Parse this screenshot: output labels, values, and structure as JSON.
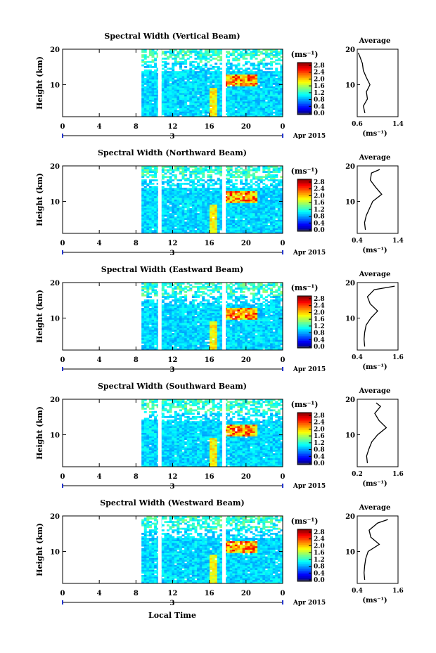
{
  "figure": {
    "bottom_xlabel": "Local Time",
    "colorbar_unit": "(ms⁻¹)",
    "avg_title": "Average",
    "avg_xunit": "(ms⁻¹)",
    "date_day": "3",
    "date_label": "Apr 2015",
    "ylabel": "Height (km)",
    "colorbar_ticks": [
      "2.8",
      "2.4",
      "2.0",
      "1.6",
      "1.2",
      "0.8",
      "0.4",
      "0.0"
    ],
    "time_ticks": [
      "0",
      "4",
      "8",
      "12",
      "16",
      "20",
      "0"
    ],
    "height_ticks": [
      "20",
      "10"
    ]
  },
  "chart_data": [
    {
      "type": "heatmap",
      "title": "Spectral Width (Vertical Beam)",
      "xlabel": "Local Time",
      "ylabel": "Height (km)",
      "xlim": [
        0,
        24
      ],
      "ylim": [
        1,
        20
      ],
      "data_start_hour": 8.6,
      "gaps_hours": [
        10.6,
        17.6
      ],
      "clim": [
        0.0,
        3.0
      ],
      "colorbar_unit": "(ms⁻¹)",
      "average_profile": {
        "title": "Average",
        "xlim": [
          0.6,
          1.4
        ],
        "xticks": [
          "0.6",
          "1.4"
        ],
        "heights": [
          2,
          4,
          6,
          8,
          10,
          12,
          14,
          16,
          18,
          19
        ],
        "values": [
          0.75,
          0.72,
          0.8,
          0.78,
          0.85,
          0.78,
          0.72,
          0.7,
          0.65,
          0.62
        ]
      }
    },
    {
      "type": "heatmap",
      "title": "Spectral Width (Northward Beam)",
      "xlabel": "Local Time",
      "ylabel": "Height (km)",
      "xlim": [
        0,
        24
      ],
      "ylim": [
        1,
        20
      ],
      "data_start_hour": 8.6,
      "gaps_hours": [
        10.6,
        17.6
      ],
      "clim": [
        0.0,
        3.0
      ],
      "colorbar_unit": "(ms⁻¹)",
      "average_profile": {
        "title": "Average",
        "xlim": [
          0.4,
          1.4
        ],
        "xticks": [
          "0.4",
          "1.4"
        ],
        "heights": [
          2,
          4,
          6,
          8,
          10,
          12,
          14,
          16,
          18,
          19
        ],
        "values": [
          0.6,
          0.58,
          0.62,
          0.7,
          0.78,
          1.0,
          0.85,
          0.72,
          0.75,
          0.95
        ]
      }
    },
    {
      "type": "heatmap",
      "title": "Spectral Width (Eastward Beam)",
      "xlabel": "Local Time",
      "ylabel": "Height (km)",
      "xlim": [
        0,
        24
      ],
      "ylim": [
        1,
        20
      ],
      "data_start_hour": 8.6,
      "gaps_hours": [
        10.6,
        17.6
      ],
      "clim": [
        0.0,
        3.0
      ],
      "colorbar_unit": "(ms⁻¹)",
      "average_profile": {
        "title": "Average",
        "xlim": [
          0.4,
          1.6
        ],
        "xticks": [
          "0.4",
          "1.6"
        ],
        "heights": [
          2,
          4,
          6,
          8,
          10,
          12,
          14,
          16,
          18,
          19
        ],
        "values": [
          0.62,
          0.6,
          0.62,
          0.66,
          0.8,
          1.0,
          0.78,
          0.7,
          0.9,
          1.5
        ]
      }
    },
    {
      "type": "heatmap",
      "title": "Spectral Width (Southward Beam)",
      "xlabel": "Local Time",
      "ylabel": "Height (km)",
      "xlim": [
        0,
        24
      ],
      "ylim": [
        1,
        20
      ],
      "data_start_hour": 8.6,
      "gaps_hours": [
        10.6,
        17.6
      ],
      "clim": [
        0.0,
        3.0
      ],
      "colorbar_unit": "(ms⁻¹)",
      "average_profile": {
        "title": "Average",
        "xlim": [
          0.2,
          1.6
        ],
        "xticks": [
          "0.2",
          "1.6"
        ],
        "heights": [
          2,
          4,
          6,
          8,
          10,
          12,
          14,
          16,
          18,
          19
        ],
        "values": [
          0.55,
          0.52,
          0.6,
          0.7,
          0.9,
          1.2,
          0.95,
          0.8,
          1.0,
          0.85
        ]
      }
    },
    {
      "type": "heatmap",
      "title": "Spectral Width (Westward Beam)",
      "xlabel": "Local Time",
      "ylabel": "Height (km)",
      "xlim": [
        0,
        24
      ],
      "ylim": [
        1,
        20
      ],
      "data_start_hour": 8.6,
      "gaps_hours": [
        10.6,
        17.6
      ],
      "clim": [
        0.0,
        3.0
      ],
      "colorbar_unit": "(ms⁻¹)",
      "average_profile": {
        "title": "Average",
        "xlim": [
          0.4,
          1.6
        ],
        "xticks": [
          "0.4",
          "1.6"
        ],
        "heights": [
          2,
          4,
          6,
          8,
          10,
          12,
          14,
          16,
          18,
          19
        ],
        "values": [
          0.62,
          0.6,
          0.62,
          0.65,
          0.72,
          1.05,
          0.8,
          0.75,
          1.0,
          1.3
        ]
      }
    }
  ]
}
